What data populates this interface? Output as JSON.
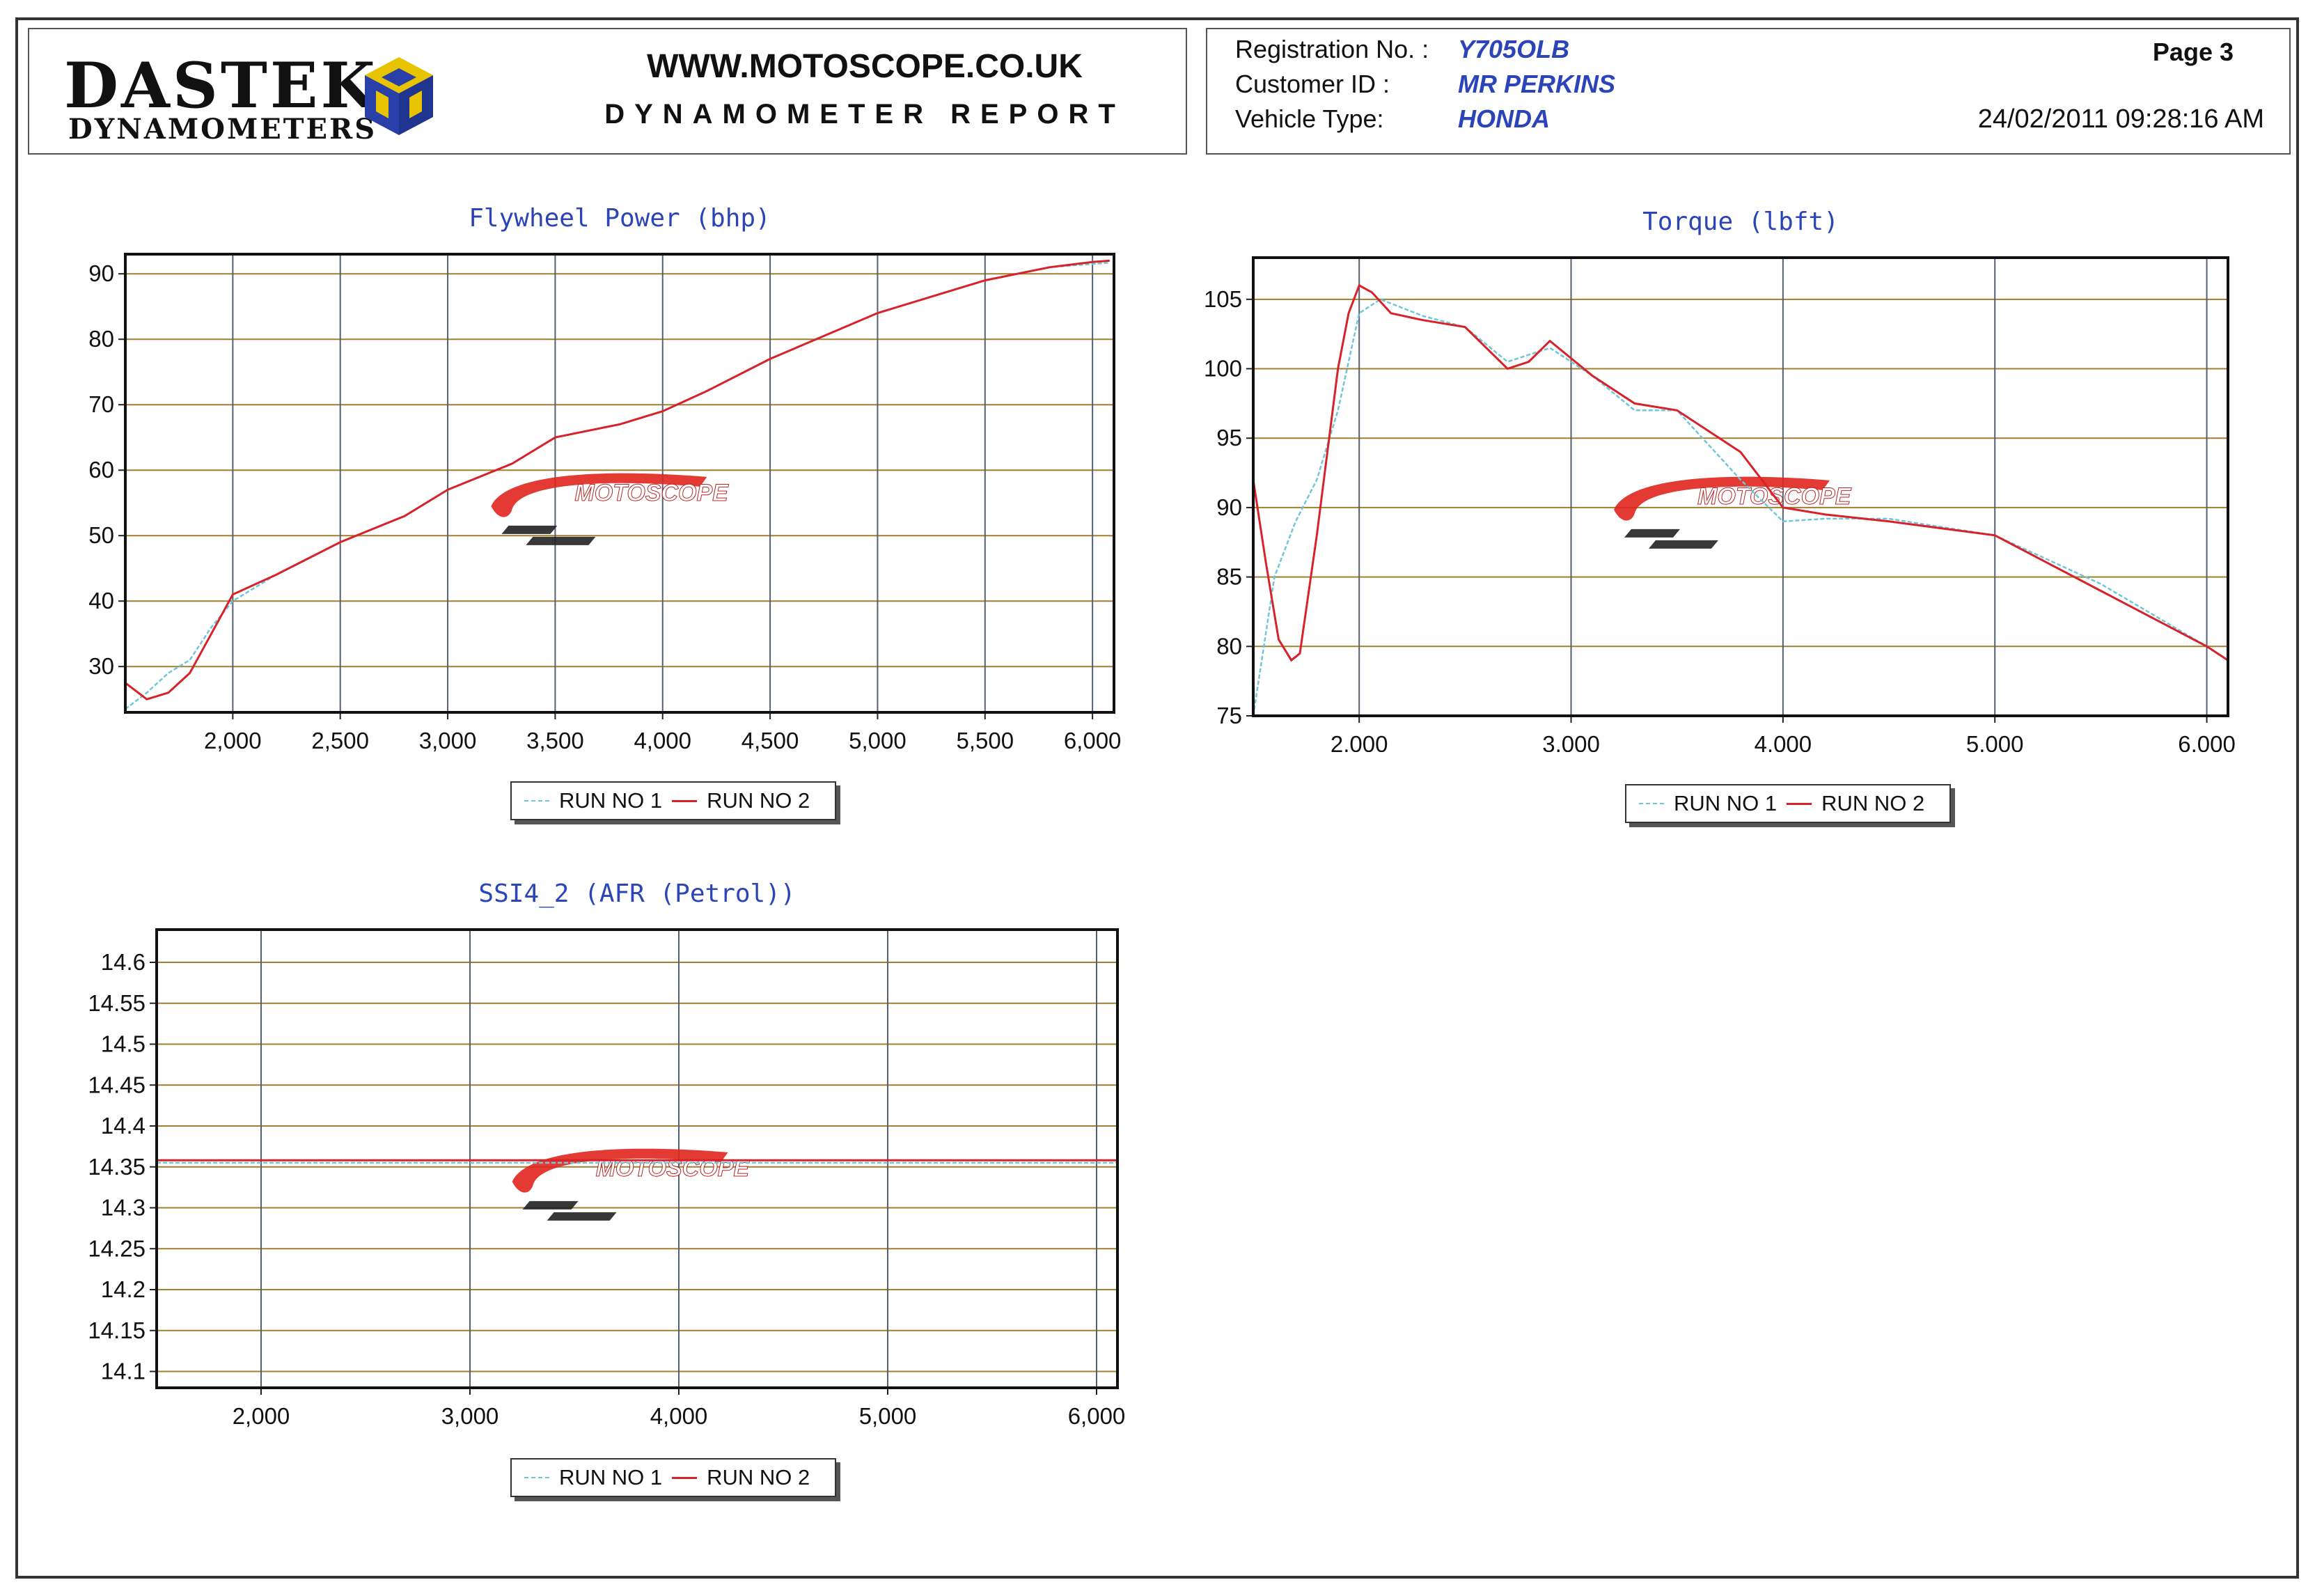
{
  "header": {
    "brand_name": "DASTEK",
    "brand_sub": "DYNAMOMETERS",
    "website": "WWW.MOTOSCOPE.CO.UK",
    "report_title": "DYNAMOMETER REPORT",
    "registration_label": "Registration No. :",
    "registration_value": "Y705OLB",
    "customer_label": "Customer ID :",
    "customer_value": "MR PERKINS",
    "vehicle_label": "Vehicle Type:",
    "vehicle_value": "HONDA",
    "page": "Page 3",
    "datetime": "24/02/2011 09:28:16 AM"
  },
  "legend": {
    "run1": "RUN NO 1",
    "run2": "RUN NO 2"
  },
  "colors": {
    "run1": "#6fc6d8",
    "run2": "#d8222a",
    "title": "#2b45b8"
  },
  "watermark": "MOTOSCOPE",
  "chart_data": [
    {
      "type": "line",
      "title": "Flywheel Power (bhp)",
      "xlim": [
        1500,
        6100
      ],
      "ylim": [
        23,
        93
      ],
      "x_ticks": [
        "2,000",
        "2,500",
        "3,000",
        "3,500",
        "4,000",
        "4,500",
        "5,000",
        "5,500",
        "6,000"
      ],
      "x_tick_values": [
        2000,
        2500,
        3000,
        3500,
        4000,
        4500,
        5000,
        5500,
        6000
      ],
      "y_ticks": [
        30,
        40,
        50,
        60,
        70,
        80,
        90
      ],
      "series": [
        {
          "name": "RUN NO 1",
          "x": [
            1500,
            1600,
            1700,
            1800,
            1900,
            2000,
            2200,
            2500,
            2800,
            3000,
            3300,
            3500,
            3800,
            4000,
            4200,
            4500,
            5000,
            5500,
            5800,
            6000,
            6080
          ],
          "y": [
            23.5,
            26,
            29,
            31,
            36,
            40,
            44,
            49,
            53,
            57,
            61,
            65,
            67,
            69,
            72,
            77,
            84,
            89,
            91,
            91.5,
            91.7
          ]
        },
        {
          "name": "RUN NO 2",
          "x": [
            1500,
            1600,
            1700,
            1800,
            1900,
            2000,
            2200,
            2500,
            2800,
            3000,
            3300,
            3500,
            3800,
            4000,
            4200,
            4500,
            5000,
            5500,
            5800,
            6000,
            6080
          ],
          "y": [
            27.5,
            25,
            26,
            29,
            35,
            41,
            44,
            49,
            53,
            57,
            61,
            65,
            67,
            69,
            72,
            77,
            84,
            89,
            91,
            91.8,
            92
          ]
        }
      ]
    },
    {
      "type": "line",
      "title": "Torque (lbft)",
      "xlim": [
        1500,
        6100
      ],
      "ylim": [
        75,
        108
      ],
      "x_ticks": [
        "2,000",
        "3,000",
        "4,000",
        "5,000",
        "6,000"
      ],
      "x_tick_values": [
        2000,
        3000,
        4000,
        5000,
        6000
      ],
      "y_ticks": [
        75,
        80,
        85,
        90,
        95,
        100,
        105
      ],
      "series": [
        {
          "name": "RUN NO 1",
          "x": [
            1500,
            1560,
            1600,
            1700,
            1800,
            1900,
            2000,
            2100,
            2300,
            2500,
            2700,
            2800,
            2900,
            3100,
            3300,
            3500,
            3800,
            4000,
            4200,
            4500,
            5000,
            5500,
            6000,
            6100
          ],
          "y": [
            75,
            81,
            85,
            89,
            92,
            97,
            104,
            105,
            103.8,
            103,
            100.5,
            101,
            101.5,
            99.5,
            97,
            97,
            92,
            89,
            89.2,
            89.2,
            88,
            84.5,
            80,
            79
          ]
        },
        {
          "name": "RUN NO 2",
          "x": [
            1500,
            1560,
            1620,
            1680,
            1720,
            1800,
            1900,
            1950,
            2000,
            2060,
            2150,
            2300,
            2500,
            2700,
            2800,
            2900,
            3100,
            3300,
            3500,
            3800,
            4000,
            4200,
            4500,
            5000,
            5500,
            6000,
            6100
          ],
          "y": [
            92,
            86,
            80.5,
            79,
            79.5,
            88,
            100,
            104,
            106,
            105.5,
            104,
            103.5,
            103,
            100,
            100.5,
            102,
            99.5,
            97.5,
            97,
            94,
            90,
            89.5,
            89,
            88,
            84,
            80,
            79
          ]
        }
      ]
    },
    {
      "type": "line",
      "title": "SSI4_2 (AFR (Petrol))",
      "xlim": [
        1500,
        6100
      ],
      "ylim": [
        14.08,
        14.64
      ],
      "x_ticks": [
        "2,000",
        "3,000",
        "4,000",
        "5,000",
        "6,000"
      ],
      "x_tick_values": [
        2000,
        3000,
        4000,
        5000,
        6000
      ],
      "y_ticks": [
        "14.1",
        "14.15",
        "14.2",
        "14.25",
        "14.3",
        "14.35",
        "14.4",
        "14.45",
        "14.5",
        "14.55",
        "14.6"
      ],
      "y_tick_values": [
        14.1,
        14.15,
        14.2,
        14.25,
        14.3,
        14.35,
        14.4,
        14.45,
        14.5,
        14.55,
        14.6
      ],
      "series": [
        {
          "name": "RUN NO 1",
          "x": [
            1500,
            6100
          ],
          "y": [
            14.355,
            14.355
          ]
        },
        {
          "name": "RUN NO 2",
          "x": [
            1500,
            6100
          ],
          "y": [
            14.358,
            14.358
          ]
        }
      ]
    }
  ]
}
